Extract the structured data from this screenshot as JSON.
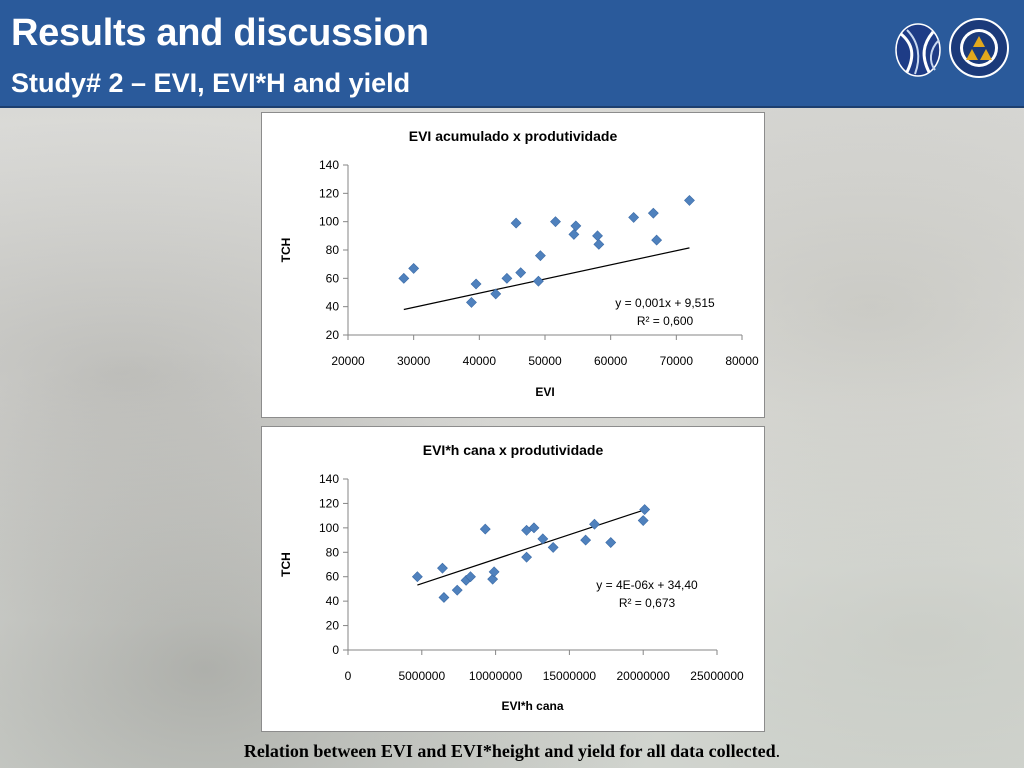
{
  "slide": {
    "title": "Results and discussion",
    "subtitle": "Study# 2 – EVI, EVI*H and yield",
    "caption": "Relation between EVI and EVI*height and yield for all data collected",
    "caption_end": "."
  },
  "colors": {
    "header": "#2a5a9b",
    "marker": "#4f81bd",
    "trendline": "#000000"
  },
  "chart_data": [
    {
      "type": "scatter",
      "title": "EVI acumulado x produtividade",
      "xlabel": "EVI",
      "ylabel": "TCH",
      "xlim": [
        20000,
        80000
      ],
      "ylim": [
        20,
        140
      ],
      "xticks": [
        "20000",
        "30000",
        "40000",
        "50000",
        "60000",
        "70000",
        "80000"
      ],
      "yticks": [
        "20",
        "40",
        "60",
        "80",
        "100",
        "120",
        "140"
      ],
      "grid": false,
      "points": [
        [
          28500,
          60
        ],
        [
          30000,
          67
        ],
        [
          38800,
          43
        ],
        [
          39500,
          56
        ],
        [
          42500,
          49
        ],
        [
          44200,
          60
        ],
        [
          45600,
          99
        ],
        [
          46300,
          64
        ],
        [
          49000,
          58
        ],
        [
          49300,
          76
        ],
        [
          51600,
          100
        ],
        [
          54400,
          91
        ],
        [
          54700,
          97
        ],
        [
          58000,
          90
        ],
        [
          58200,
          84
        ],
        [
          63500,
          103
        ],
        [
          66500,
          106
        ],
        [
          67000,
          87
        ],
        [
          72000,
          115
        ]
      ],
      "trendline": {
        "slope": 0.001,
        "intercept": 9.515,
        "x": [
          28500,
          72000
        ]
      },
      "equation": "y = 0,001x + 9,515",
      "r2": "R² = 0,600"
    },
    {
      "type": "scatter",
      "title": "EVI*h cana x produtividade",
      "xlabel": "EVI*h cana",
      "ylabel": "TCH",
      "xlim": [
        0,
        25000000
      ],
      "ylim": [
        0,
        140
      ],
      "xticks": [
        "0",
        "5000000",
        "10000000",
        "15000000",
        "20000000",
        "25000000"
      ],
      "yticks": [
        "0",
        "20",
        "40",
        "60",
        "80",
        "100",
        "120",
        "140"
      ],
      "grid": false,
      "points": [
        [
          4700000,
          60
        ],
        [
          6400000,
          67
        ],
        [
          6500000,
          43
        ],
        [
          7400000,
          49
        ],
        [
          8000000,
          57
        ],
        [
          8300000,
          60
        ],
        [
          9300000,
          99
        ],
        [
          9800000,
          58
        ],
        [
          9900000,
          64
        ],
        [
          12100000,
          76
        ],
        [
          12100000,
          98
        ],
        [
          12600000,
          100
        ],
        [
          13200000,
          91
        ],
        [
          13900000,
          84
        ],
        [
          16100000,
          90
        ],
        [
          16700000,
          103
        ],
        [
          17800000,
          88
        ],
        [
          20000000,
          106
        ],
        [
          20100000,
          115
        ]
      ],
      "trendline": {
        "slope": 4e-06,
        "intercept": 34.4,
        "x": [
          4700000,
          20100000
        ]
      },
      "equation": "y = 4E-06x + 34,40",
      "r2": "R² = 0,673"
    }
  ]
}
